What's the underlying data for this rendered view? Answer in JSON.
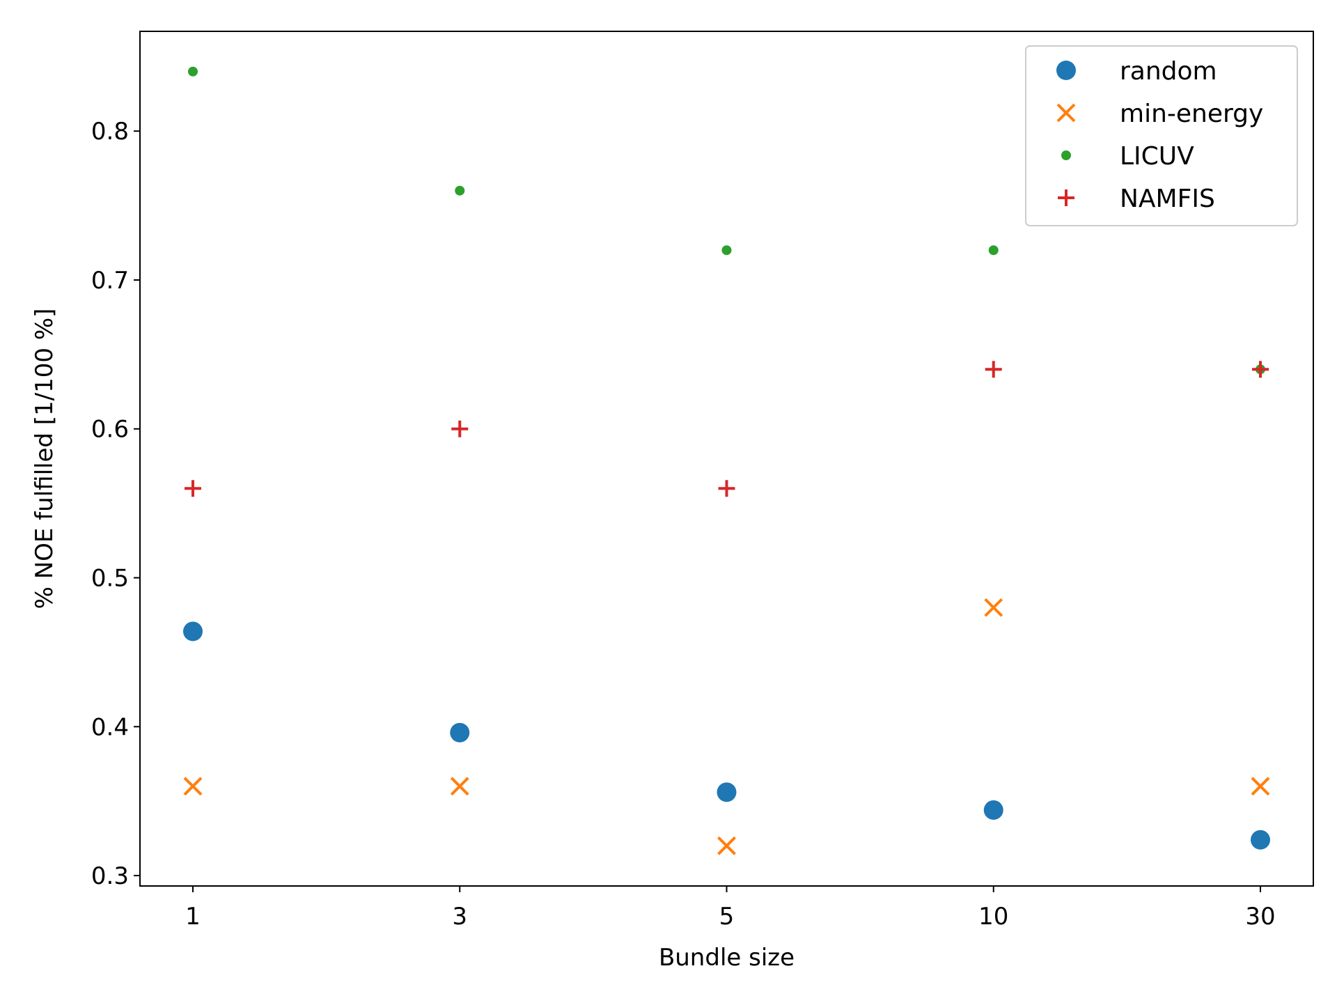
{
  "chart_data": {
    "type": "scatter",
    "title": "",
    "xlabel": "Bundle size",
    "ylabel": "% NOE fulfilled [1/100 %]",
    "categories": [
      "1",
      "3",
      "5",
      "10",
      "30"
    ],
    "ylim": [
      0.293,
      0.867
    ],
    "yticks": [
      "0.3",
      "0.4",
      "0.5",
      "0.6",
      "0.7",
      "0.8"
    ],
    "ytick_values": [
      0.3,
      0.4,
      0.5,
      0.6,
      0.7,
      0.8
    ],
    "grid": false,
    "legend_position": "top-right",
    "series": [
      {
        "name": "random",
        "marker": "circle",
        "color": "#1f77b4",
        "values": [
          0.464,
          0.396,
          0.356,
          0.344,
          0.324
        ]
      },
      {
        "name": "min-energy",
        "marker": "x",
        "color": "#ff7f0e",
        "values": [
          0.36,
          0.36,
          0.32,
          0.48,
          0.36
        ]
      },
      {
        "name": "LICUV",
        "marker": "dot",
        "color": "#2ca02c",
        "values": [
          0.84,
          0.76,
          0.72,
          0.72,
          0.64
        ]
      },
      {
        "name": "NAMFIS",
        "marker": "plus",
        "color": "#d62728",
        "values": [
          0.56,
          0.6,
          0.56,
          0.64,
          0.64
        ]
      }
    ]
  }
}
